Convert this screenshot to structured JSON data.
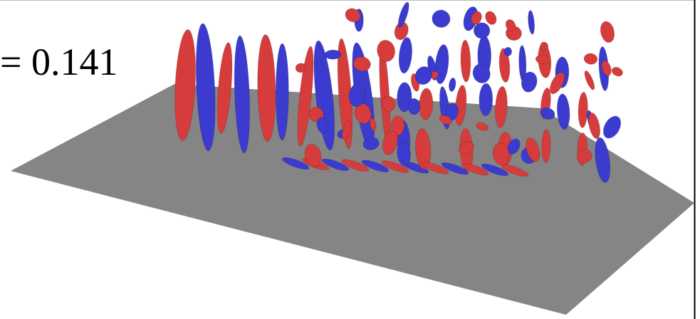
{
  "label": "= 0.141"
}
